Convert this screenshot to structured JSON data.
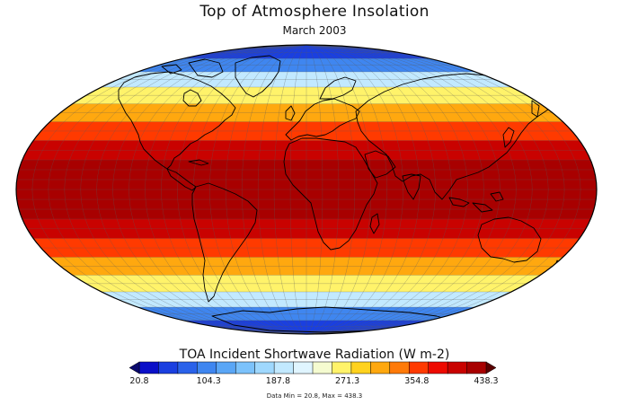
{
  "title": "Top of Atmosphere Insolation",
  "subtitle": "March 2003",
  "colorbar": {
    "title": "TOA Incident Shortwave Radiation (W m-2)",
    "tick_labels": [
      "20.8",
      "104.3",
      "187.8",
      "271.3",
      "354.8",
      "438.3"
    ],
    "colors": [
      "#0a0fc8",
      "#1a3fe0",
      "#2a62ea",
      "#3f86f0",
      "#5aa6f6",
      "#7cc2fb",
      "#9fd8fe",
      "#c2e9ff",
      "#e0f5ff",
      "#f5fbd0",
      "#fff36a",
      "#ffd21e",
      "#ffa80f",
      "#ff7a08",
      "#ff3a00",
      "#ee0a00",
      "#c90200",
      "#a80000"
    ]
  },
  "data_range": "Data Min = 20.8, Max = 438.3",
  "chart_data": {
    "type": "heatmap",
    "projection": "Mollweide global map with continental outlines",
    "variable": "TOA Incident Shortwave Radiation (W m-2)",
    "value_range": [
      20.8,
      438.3
    ],
    "latitude_bands": [
      {
        "lat_center": 80,
        "value": 45
      },
      {
        "lat_center": 70,
        "value": 110
      },
      {
        "lat_center": 60,
        "value": 185
      },
      {
        "lat_center": 50,
        "value": 255
      },
      {
        "lat_center": 40,
        "value": 305
      },
      {
        "lat_center": 30,
        "value": 355
      },
      {
        "lat_center": 20,
        "value": 395
      },
      {
        "lat_center": 10,
        "value": 425
      },
      {
        "lat_center": 0,
        "value": 435
      },
      {
        "lat_center": -10,
        "value": 425
      },
      {
        "lat_center": -20,
        "value": 395
      },
      {
        "lat_center": -30,
        "value": 355
      },
      {
        "lat_center": -40,
        "value": 305
      },
      {
        "lat_center": -50,
        "value": 255
      },
      {
        "lat_center": -60,
        "value": 185
      },
      {
        "lat_center": -70,
        "value": 110
      },
      {
        "lat_center": -80,
        "value": 45
      }
    ]
  }
}
